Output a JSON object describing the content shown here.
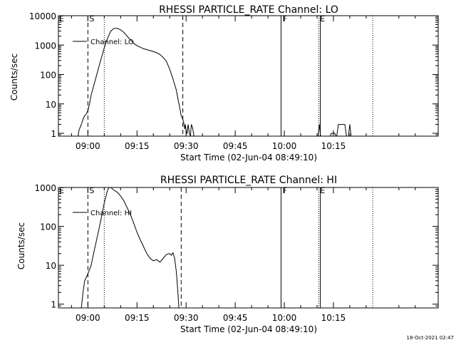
{
  "footer_timestamp": "18-Oct-2021 02:47",
  "marker_labels": {
    "start": "S",
    "finish": "F",
    "end": "E",
    "left": "E"
  },
  "chart_data": [
    {
      "type": "line",
      "title": "RHESSI PARTICLE_RATE Channel: LO",
      "xlabel": "Start Time (02-Jun-04 08:49:10)",
      "ylabel": "Counts/sec",
      "yscale": "log",
      "ylim": [
        0.8,
        10000
      ],
      "xlim_minutes": [
        -9,
        107
      ],
      "x_tick_minutes": [
        0,
        15,
        30,
        45,
        60,
        75
      ],
      "x_tick_labels": [
        "09:00",
        "09:15",
        "09:30",
        "09:45",
        "10:00",
        "10:15"
      ],
      "y_ticks": [
        1,
        10,
        100,
        1000,
        10000
      ],
      "y_tick_labels": [
        "1",
        "10",
        "100",
        "1000",
        "10000"
      ],
      "legend": {
        "label": "Channel: LO",
        "placement": "top-left"
      },
      "vlines": [
        {
          "minute": 0,
          "style": "dashed",
          "label": "S"
        },
        {
          "minute": 5,
          "style": "dotted",
          "label": ""
        },
        {
          "minute": 29,
          "style": "dashed",
          "label": ""
        },
        {
          "minute": 59,
          "style": "solid",
          "label": "F"
        },
        {
          "minute": 70.5,
          "style": "dotted",
          "label": "E"
        },
        {
          "minute": 71,
          "style": "solid",
          "label": ""
        },
        {
          "minute": 87,
          "style": "dotted",
          "label": ""
        }
      ],
      "series": [
        {
          "name": "Channel: LO",
          "segments": [
            [
              [
                -3,
                0.8
              ],
              [
                -2.7,
                1.3
              ],
              [
                -2,
                2
              ],
              [
                -1.5,
                3
              ],
              [
                -1,
                4
              ],
              [
                -0.5,
                4.5
              ],
              [
                0,
                6
              ],
              [
                0.5,
                10
              ],
              [
                1,
                20
              ],
              [
                2,
                50
              ],
              [
                3,
                130
              ],
              [
                4,
                330
              ],
              [
                5,
                800
              ],
              [
                6,
                1700
              ],
              [
                7,
                3000
              ],
              [
                8,
                3700
              ],
              [
                9,
                3700
              ],
              [
                10,
                3300
              ],
              [
                11,
                2700
              ],
              [
                12,
                2000
              ],
              [
                13,
                1500
              ],
              [
                14,
                1150
              ],
              [
                15,
                950
              ],
              [
                16,
                850
              ],
              [
                17,
                750
              ],
              [
                18,
                700
              ],
              [
                19,
                650
              ],
              [
                20,
                600
              ],
              [
                21,
                550
              ],
              [
                22,
                480
              ],
              [
                23,
                380
              ],
              [
                24,
                280
              ],
              [
                25,
                150
              ],
              [
                26,
                70
              ],
              [
                27,
                30
              ],
              [
                27.5,
                15
              ],
              [
                28,
                8
              ],
              [
                28.5,
                4
              ],
              [
                29,
                3
              ],
              [
                29.3,
                2.2
              ],
              [
                29.6,
                1.4
              ],
              [
                29.8,
                2
              ],
              [
                30,
                1.2
              ],
              [
                30.3,
                1
              ],
              [
                30.6,
                2
              ],
              [
                31,
                1
              ],
              [
                31.3,
                0.8
              ]
            ],
            [
              [
                31.3,
                0.8
              ],
              [
                31.6,
                2
              ],
              [
                32,
                1.5
              ],
              [
                32.4,
                0.8
              ]
            ],
            [
              [
                70.3,
                0.8
              ],
              [
                70.7,
                2
              ],
              [
                71.1,
                0.8
              ]
            ],
            [
              [
                74,
                0.8
              ],
              [
                74.4,
                1
              ],
              [
                75.4,
                1
              ],
              [
                75.8,
                0.8
              ]
            ],
            [
              [
                76,
                0.8
              ],
              [
                76.5,
                2
              ],
              [
                78.5,
                2
              ],
              [
                79,
                0.8
              ]
            ],
            [
              [
                79.6,
                0.8
              ],
              [
                80,
                2
              ],
              [
                80.4,
                0.8
              ]
            ]
          ]
        }
      ]
    },
    {
      "type": "line",
      "title": "RHESSI PARTICLE_RATE Channel: HI",
      "xlabel": "Start Time (02-Jun-04 08:49:10)",
      "ylabel": "Counts/sec",
      "yscale": "log",
      "ylim": [
        0.8,
        1000
      ],
      "xlim_minutes": [
        -9,
        107
      ],
      "x_tick_minutes": [
        0,
        15,
        30,
        45,
        60,
        75
      ],
      "x_tick_labels": [
        "09:00",
        "09:15",
        "09:30",
        "09:45",
        "10:00",
        "10:15"
      ],
      "y_ticks": [
        1,
        10,
        100,
        1000
      ],
      "y_tick_labels": [
        "1",
        "10",
        "100",
        "1000"
      ],
      "legend": {
        "label": "Channel: HI",
        "placement": "top-left"
      },
      "vlines": [
        {
          "minute": 0,
          "style": "dashed",
          "label": "S"
        },
        {
          "minute": 5,
          "style": "dotted",
          "label": ""
        },
        {
          "minute": 28.5,
          "style": "dashed",
          "label": ""
        },
        {
          "minute": 59,
          "style": "solid",
          "label": "F"
        },
        {
          "minute": 70.5,
          "style": "dotted",
          "label": "E"
        },
        {
          "minute": 71,
          "style": "solid",
          "label": ""
        },
        {
          "minute": 87,
          "style": "dotted",
          "label": ""
        }
      ],
      "series": [
        {
          "name": "Channel: HI",
          "segments": [
            [
              [
                -2,
                0.8
              ],
              [
                -1.5,
                2
              ],
              [
                -1,
                4
              ],
              [
                0,
                6
              ],
              [
                1,
                10
              ],
              [
                2,
                25
              ],
              [
                3,
                60
              ],
              [
                4,
                150
              ],
              [
                5,
                400
              ],
              [
                6,
                850
              ],
              [
                6.5,
                1000
              ],
              [
                7,
                1000
              ],
              [
                8,
                850
              ],
              [
                9,
                750
              ],
              [
                10,
                600
              ],
              [
                11,
                450
              ],
              [
                12,
                300
              ],
              [
                13,
                200
              ],
              [
                14,
                120
              ],
              [
                15,
                70
              ],
              [
                16,
                45
              ],
              [
                17,
                30
              ],
              [
                18,
                20
              ],
              [
                19,
                15
              ],
              [
                20,
                13
              ],
              [
                21,
                14
              ],
              [
                22,
                12
              ],
              [
                23,
                15
              ],
              [
                24,
                19
              ],
              [
                25,
                20
              ],
              [
                25.5,
                18
              ],
              [
                26,
                21
              ],
              [
                26.5,
                15
              ],
              [
                27,
                7
              ],
              [
                27.5,
                2
              ],
              [
                27.8,
                0.8
              ]
            ]
          ]
        }
      ]
    }
  ]
}
